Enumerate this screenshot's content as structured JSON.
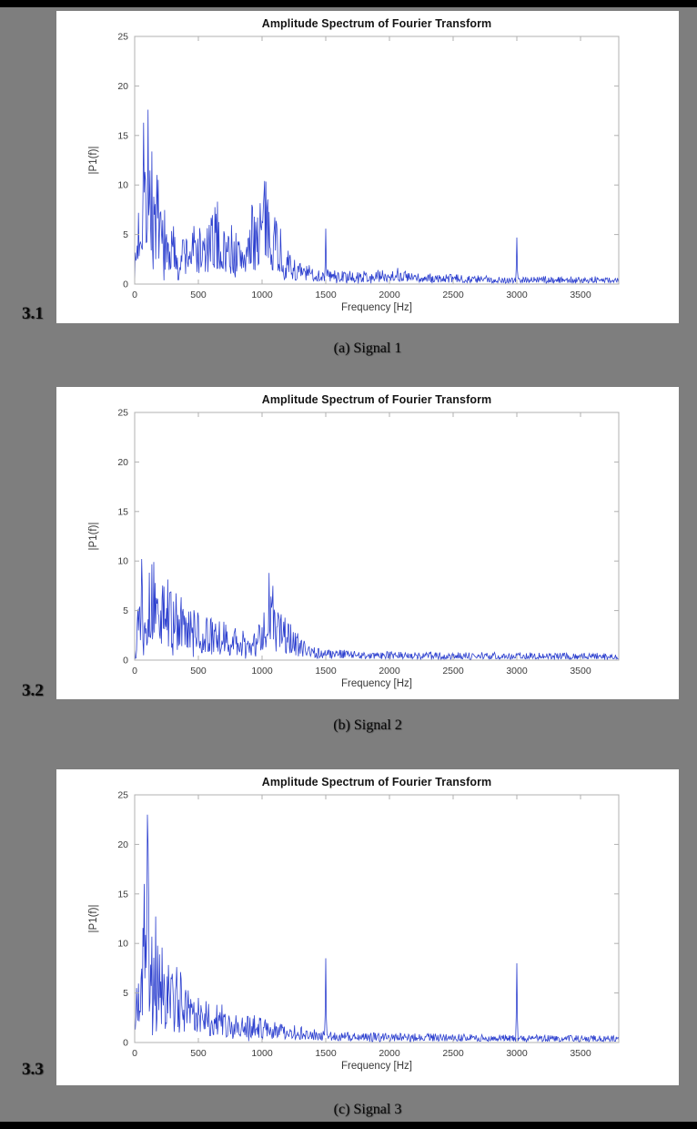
{
  "page": {
    "background_color": "#7e7e7e",
    "border_bar_color": "#000000",
    "panel_color": "#ffffff"
  },
  "figures": [
    {
      "section": "3.1",
      "caption": "(a) Signal 1"
    },
    {
      "section": "3.2",
      "caption": "(b) Signal 2"
    },
    {
      "section": "3.3",
      "caption": "(c) Signal 3"
    }
  ],
  "chart_data": [
    {
      "type": "line",
      "title": "Amplitude Spectrum of Fourier Transform",
      "xlabel": "Frequency [Hz]",
      "ylabel": "|P1(f)|",
      "xlim": [
        0,
        3800
      ],
      "ylim": [
        0,
        25
      ],
      "xticks": [
        0,
        500,
        1000,
        1500,
        2000,
        2500,
        3000,
        3500
      ],
      "yticks": [
        0,
        5,
        10,
        15,
        20,
        25
      ],
      "grid": false,
      "legend": null,
      "line_color": "#2e41cf",
      "axis_color": "#b0b0b0",
      "series": [
        {
          "name": "|P1(f)| Signal 1",
          "seed": 7,
          "envelope": [
            [
              0,
              2
            ],
            [
              40,
              12
            ],
            [
              70,
              16.5
            ],
            [
              110,
              17.6
            ],
            [
              150,
              13
            ],
            [
              200,
              10
            ],
            [
              260,
              6.5
            ],
            [
              320,
              6
            ],
            [
              400,
              5.5
            ],
            [
              480,
              6.5
            ],
            [
              560,
              5.5
            ],
            [
              640,
              9
            ],
            [
              700,
              6
            ],
            [
              760,
              6.5
            ],
            [
              820,
              5
            ],
            [
              880,
              6
            ],
            [
              950,
              9.5
            ],
            [
              1000,
              10.3
            ],
            [
              1060,
              10.5
            ],
            [
              1120,
              8
            ],
            [
              1170,
              4
            ],
            [
              1230,
              3
            ],
            [
              1300,
              2.2
            ],
            [
              1400,
              1.8
            ],
            [
              1500,
              1.6
            ],
            [
              1600,
              1.4
            ],
            [
              1750,
              1.3
            ],
            [
              1900,
              1.4
            ],
            [
              2000,
              1.6
            ],
            [
              2080,
              1.9
            ],
            [
              2150,
              1.2
            ],
            [
              2300,
              1
            ],
            [
              2500,
              1
            ],
            [
              2700,
              0.9
            ],
            [
              2900,
              0.8
            ],
            [
              3100,
              0.8
            ],
            [
              3300,
              0.8
            ],
            [
              3600,
              0.8
            ],
            [
              3800,
              0.7
            ]
          ],
          "peaks": [
            {
              "x": 70,
              "y": 16.3
            },
            {
              "x": 105,
              "y": 17.6
            },
            {
              "x": 1020,
              "y": 10.4
            },
            {
              "x": 1500,
              "y": 5.6
            },
            {
              "x": 3000,
              "y": 4.7
            }
          ]
        }
      ]
    },
    {
      "type": "line",
      "title": "Amplitude Spectrum of Fourier Transform",
      "xlabel": "Frequency [Hz]",
      "ylabel": "|P1(f)|",
      "xlim": [
        0,
        3800
      ],
      "ylim": [
        0,
        25
      ],
      "xticks": [
        0,
        500,
        1000,
        1500,
        2000,
        2500,
        3000,
        3500
      ],
      "yticks": [
        0,
        5,
        10,
        15,
        20,
        25
      ],
      "grid": false,
      "legend": null,
      "line_color": "#2e41cf",
      "axis_color": "#b0b0b0",
      "series": [
        {
          "name": "|P1(f)| Signal 2",
          "seed": 13,
          "envelope": [
            [
              0,
              2
            ],
            [
              30,
              9
            ],
            [
              60,
              10
            ],
            [
              100,
              9.5
            ],
            [
              150,
              9.8
            ],
            [
              200,
              8
            ],
            [
              260,
              8.5
            ],
            [
              320,
              7
            ],
            [
              400,
              6
            ],
            [
              480,
              5
            ],
            [
              560,
              4.5
            ],
            [
              640,
              4.2
            ],
            [
              720,
              3.8
            ],
            [
              800,
              3.2
            ],
            [
              880,
              3
            ],
            [
              950,
              3.2
            ],
            [
              1010,
              4.5
            ],
            [
              1050,
              8.8
            ],
            [
              1090,
              8
            ],
            [
              1130,
              6
            ],
            [
              1180,
              4.5
            ],
            [
              1240,
              3.5
            ],
            [
              1300,
              2.5
            ],
            [
              1380,
              1.8
            ],
            [
              1450,
              1.3
            ],
            [
              1550,
              1.1
            ],
            [
              1700,
              1
            ],
            [
              1900,
              0.9
            ],
            [
              2100,
              0.9
            ],
            [
              2300,
              0.85
            ],
            [
              2600,
              0.8
            ],
            [
              2900,
              0.8
            ],
            [
              3200,
              0.75
            ],
            [
              3500,
              0.75
            ],
            [
              3800,
              0.7
            ]
          ],
          "peaks": [
            {
              "x": 55,
              "y": 10.2
            },
            {
              "x": 150,
              "y": 9.9
            },
            {
              "x": 1055,
              "y": 8.8
            },
            {
              "x": 1085,
              "y": 7.5
            }
          ]
        }
      ]
    },
    {
      "type": "line",
      "title": "Amplitude Spectrum of Fourier Transform",
      "xlabel": "Frequency [Hz]",
      "ylabel": "|P1(f)|",
      "xlim": [
        0,
        3800
      ],
      "ylim": [
        0,
        25
      ],
      "xticks": [
        0,
        500,
        1000,
        1500,
        2000,
        2500,
        3000,
        3500
      ],
      "yticks": [
        0,
        5,
        10,
        15,
        20,
        25
      ],
      "grid": false,
      "legend": null,
      "line_color": "#2e41cf",
      "axis_color": "#b0b0b0",
      "series": [
        {
          "name": "|P1(f)| Signal 3",
          "seed": 21,
          "envelope": [
            [
              0,
              3
            ],
            [
              40,
              12
            ],
            [
              80,
              16
            ],
            [
              110,
              23
            ],
            [
              140,
              15
            ],
            [
              180,
              12
            ],
            [
              230,
              10
            ],
            [
              280,
              9
            ],
            [
              350,
              7.5
            ],
            [
              420,
              6
            ],
            [
              500,
              5
            ],
            [
              580,
              4.5
            ],
            [
              660,
              4
            ],
            [
              750,
              3.5
            ],
            [
              850,
              3
            ],
            [
              950,
              2.8
            ],
            [
              1050,
              2.5
            ],
            [
              1150,
              2
            ],
            [
              1250,
              1.8
            ],
            [
              1350,
              1.5
            ],
            [
              1450,
              1.3
            ],
            [
              1600,
              1.1
            ],
            [
              1800,
              1
            ],
            [
              2000,
              0.95
            ],
            [
              2300,
              0.9
            ],
            [
              2600,
              0.85
            ],
            [
              2900,
              0.8
            ],
            [
              3200,
              0.8
            ],
            [
              3500,
              0.75
            ],
            [
              3800,
              0.7
            ]
          ],
          "peaks": [
            {
              "x": 75,
              "y": 16
            },
            {
              "x": 100,
              "y": 23
            },
            {
              "x": 1500,
              "y": 8.5
            },
            {
              "x": 3000,
              "y": 8.0
            }
          ]
        }
      ]
    }
  ]
}
